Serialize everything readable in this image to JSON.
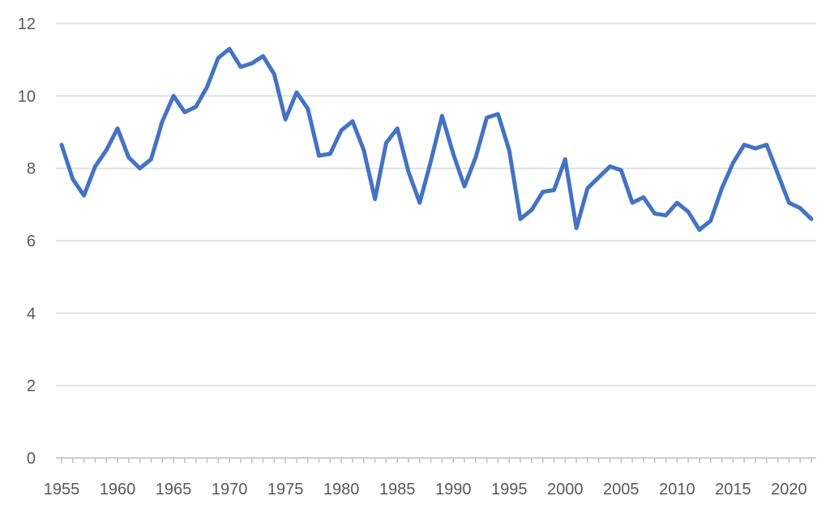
{
  "chart_data": {
    "type": "line",
    "title": "",
    "xlabel": "",
    "ylabel": "",
    "xlim": [
      1955,
      2022
    ],
    "ylim": [
      0,
      12
    ],
    "y_ticks": [
      0,
      2,
      4,
      6,
      8,
      10,
      12
    ],
    "x_ticks": [
      1955,
      1960,
      1965,
      1970,
      1975,
      1980,
      1985,
      1990,
      1995,
      2000,
      2005,
      2010,
      2015,
      2020
    ],
    "grid": true,
    "legend": "none",
    "series": [
      {
        "color": "#4472c4",
        "x": [
          1955,
          1956,
          1957,
          1958,
          1959,
          1960,
          1961,
          1962,
          1963,
          1964,
          1965,
          1966,
          1967,
          1968,
          1969,
          1970,
          1971,
          1972,
          1973,
          1974,
          1975,
          1976,
          1977,
          1978,
          1979,
          1980,
          1981,
          1982,
          1983,
          1984,
          1985,
          1986,
          1987,
          1988,
          1989,
          1990,
          1991,
          1992,
          1993,
          1994,
          1995,
          1996,
          1997,
          1998,
          1999,
          2000,
          2001,
          2002,
          2003,
          2004,
          2005,
          2006,
          2007,
          2008,
          2009,
          2010,
          2011,
          2012,
          2013,
          2014,
          2015,
          2016,
          2017,
          2018,
          2019,
          2020,
          2021,
          2022
        ],
        "values": [
          8.65,
          7.7,
          7.25,
          8.05,
          8.5,
          9.1,
          8.3,
          8.0,
          8.25,
          9.3,
          10.0,
          9.55,
          9.7,
          10.25,
          11.05,
          11.3,
          10.8,
          10.9,
          11.1,
          10.6,
          9.35,
          10.1,
          9.65,
          8.35,
          8.4,
          9.05,
          9.3,
          8.5,
          7.15,
          8.7,
          9.1,
          7.9,
          7.05,
          8.2,
          9.45,
          8.4,
          7.5,
          8.3,
          9.4,
          9.5,
          8.5,
          6.6,
          6.85,
          7.35,
          7.4,
          8.25,
          6.35,
          7.45,
          7.75,
          8.05,
          7.95,
          7.05,
          7.2,
          6.75,
          6.7,
          7.05,
          6.8,
          6.3,
          6.55,
          7.45,
          8.15,
          8.65,
          8.55,
          8.65,
          7.85,
          7.05,
          6.9,
          6.6
        ]
      }
    ]
  }
}
